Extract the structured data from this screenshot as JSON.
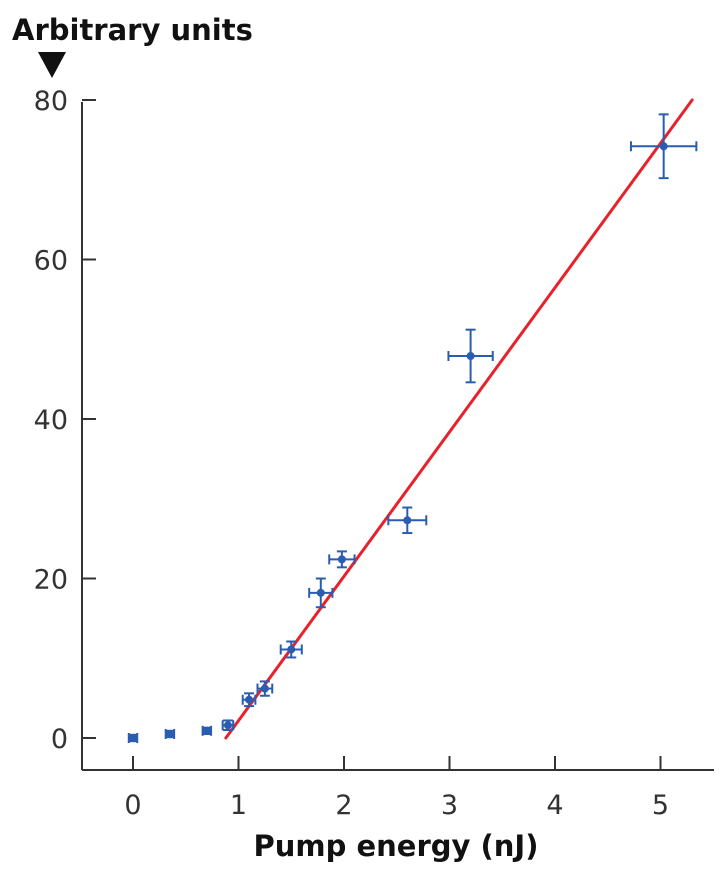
{
  "chart_data": {
    "type": "scatter",
    "xlabel": "Pump energy (nJ)",
    "ylabel": "Arbitrary units",
    "xlim": [
      -0.5,
      5.5
    ],
    "ylim": [
      -4,
      80
    ],
    "xticks": [
      0,
      1,
      2,
      3,
      4,
      5
    ],
    "yticks": [
      0,
      20,
      40,
      60,
      80
    ],
    "grid": false,
    "colors": {
      "points": "#2a5db0",
      "fit": "#e8222a",
      "axis": "#333333"
    },
    "series": [
      {
        "kind": "points-with-error-bars",
        "points": [
          {
            "x": 0.0,
            "y": 0.0,
            "xerr": 0.04,
            "yerr": 0.4
          },
          {
            "x": 0.35,
            "y": 0.5,
            "xerr": 0.04,
            "yerr": 0.4
          },
          {
            "x": 0.7,
            "y": 0.9,
            "xerr": 0.04,
            "yerr": 0.4
          },
          {
            "x": 0.9,
            "y": 1.6,
            "xerr": 0.05,
            "yerr": 0.6
          },
          {
            "x": 1.1,
            "y": 4.8,
            "xerr": 0.06,
            "yerr": 0.8
          },
          {
            "x": 1.25,
            "y": 6.2,
            "xerr": 0.07,
            "yerr": 0.9
          },
          {
            "x": 1.5,
            "y": 11.1,
            "xerr": 0.1,
            "yerr": 1.0
          },
          {
            "x": 1.78,
            "y": 18.2,
            "xerr": 0.11,
            "yerr": 1.8
          },
          {
            "x": 1.98,
            "y": 22.4,
            "xerr": 0.12,
            "yerr": 1.0
          },
          {
            "x": 2.6,
            "y": 27.3,
            "xerr": 0.18,
            "yerr": 1.6
          },
          {
            "x": 3.2,
            "y": 47.9,
            "xerr": 0.21,
            "yerr": 3.3
          },
          {
            "x": 5.03,
            "y": 74.2,
            "xerr": 0.31,
            "yerr": 4.0
          }
        ]
      },
      {
        "kind": "fit-line",
        "x": [
          0.88,
          5.3
        ],
        "y": [
          0.0,
          80.0
        ]
      }
    ]
  }
}
